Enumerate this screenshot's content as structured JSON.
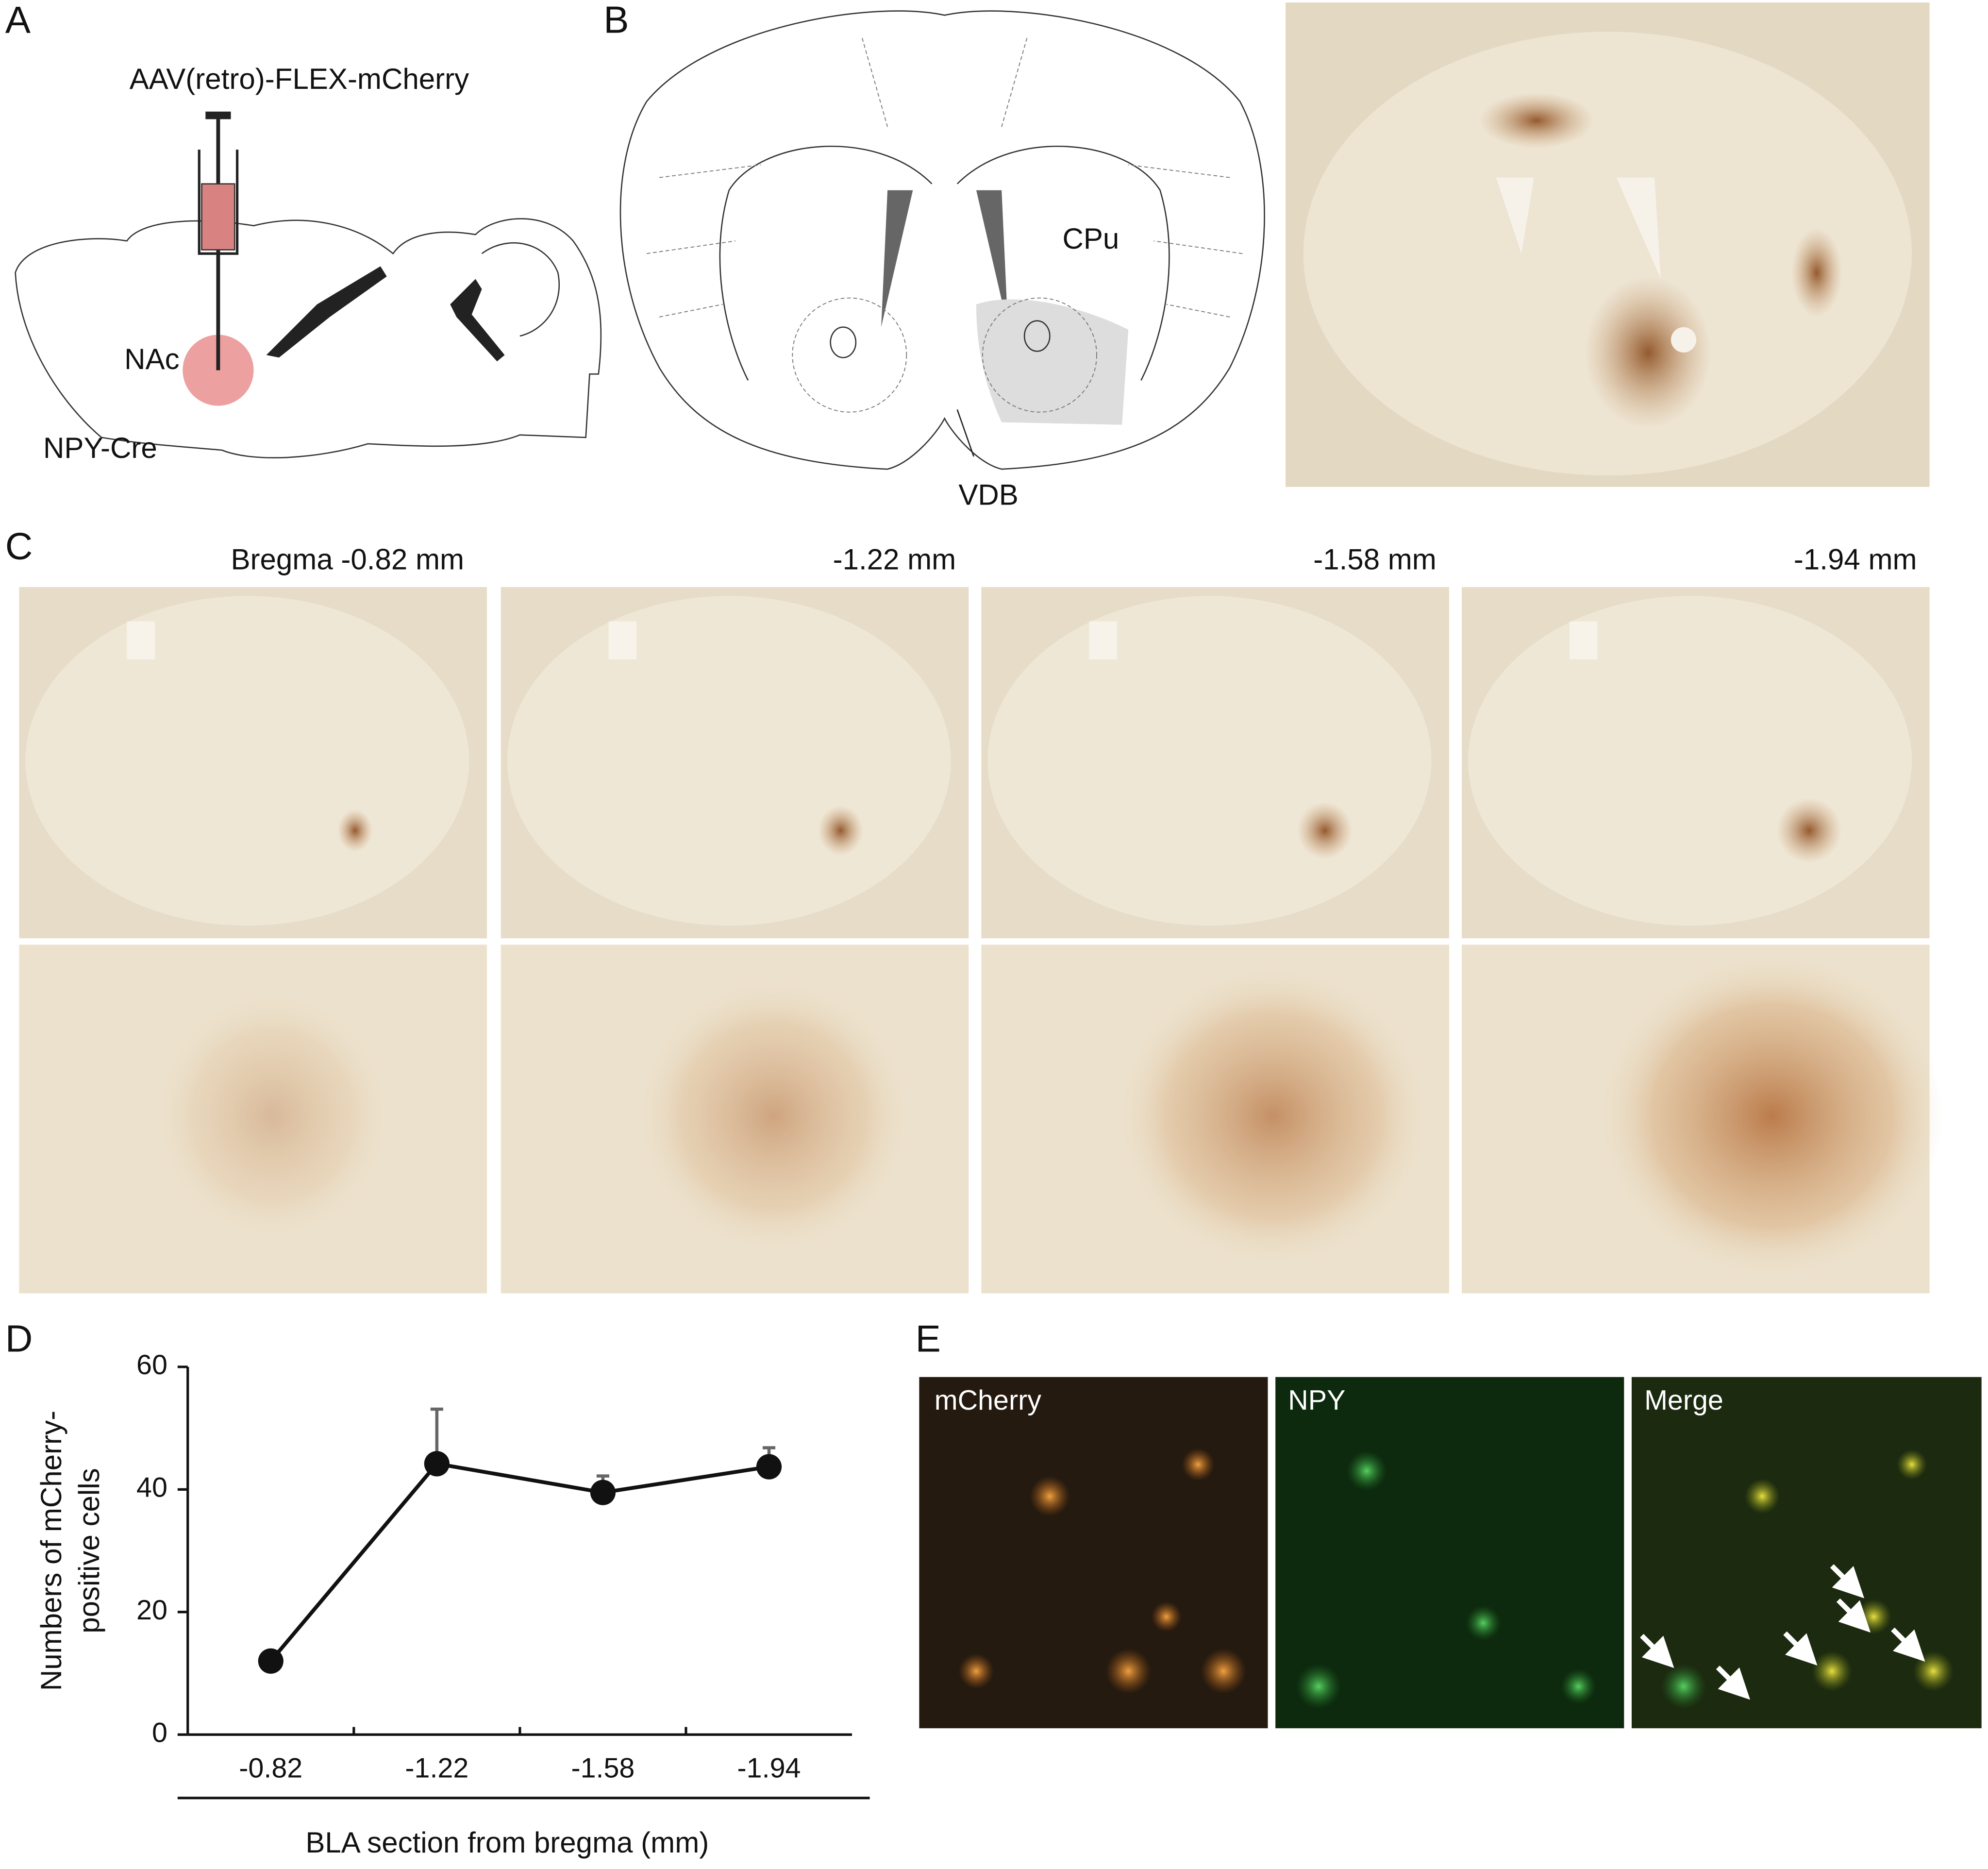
{
  "panels": {
    "A": {
      "label": "A",
      "injection": "AAV(retro)-FLEX-mCherry",
      "region": "NAc",
      "mouse": "NPY-Cre"
    },
    "B": {
      "label": "B",
      "regions": [
        "CPu",
        "VDB"
      ]
    },
    "C": {
      "label": "C",
      "sections": [
        "Bregma -0.82 mm",
        "-1.22 mm",
        "-1.58 mm",
        "-1.94 mm"
      ]
    },
    "D": {
      "label": "D"
    },
    "E": {
      "label": "E",
      "channels": [
        "mCherry",
        "NPY",
        "Merge"
      ]
    }
  },
  "chart_data": {
    "type": "line",
    "y_label": [
      "Numbers of mCherry-",
      "positive cells"
    ],
    "x_label": "BLA section from bregma (mm)",
    "categories": [
      "-0.82",
      "-1.22",
      "-1.58",
      "-1.94"
    ],
    "values": [
      12,
      44.2,
      39.5,
      43.7
    ],
    "errors": [
      null,
      8.9,
      2.7,
      3.1
    ],
    "color": "#111111",
    "error_color": "#666666",
    "ylim": [
      0,
      60
    ],
    "yticks": [
      0,
      20,
      40,
      60
    ]
  }
}
